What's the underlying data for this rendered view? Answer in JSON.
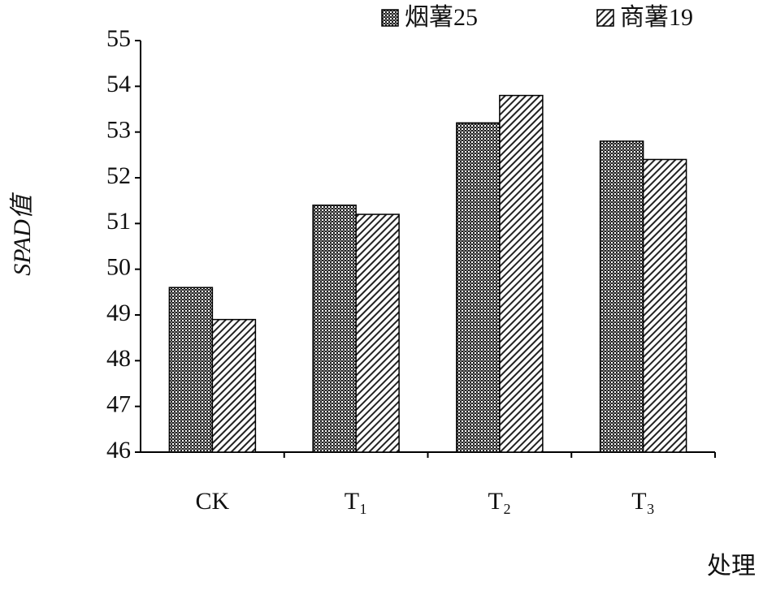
{
  "chart_data": {
    "type": "bar",
    "y_label": "SPAD值",
    "x_label": "处理",
    "categories": [
      "CK",
      "T₁",
      "T₂",
      "T₃"
    ],
    "series": [
      {
        "name": "烟薯25",
        "color": "#222222",
        "pattern": "checker",
        "values": [
          49.6,
          51.4,
          53.2,
          52.8
        ]
      },
      {
        "name": "商薯19",
        "color": "#222222",
        "pattern": "hatch",
        "values": [
          48.9,
          51.2,
          53.8,
          52.4
        ]
      }
    ],
    "ylim": [
      46,
      55
    ],
    "yticks": [
      46,
      47,
      48,
      49,
      50,
      51,
      52,
      53,
      54,
      55
    ]
  }
}
